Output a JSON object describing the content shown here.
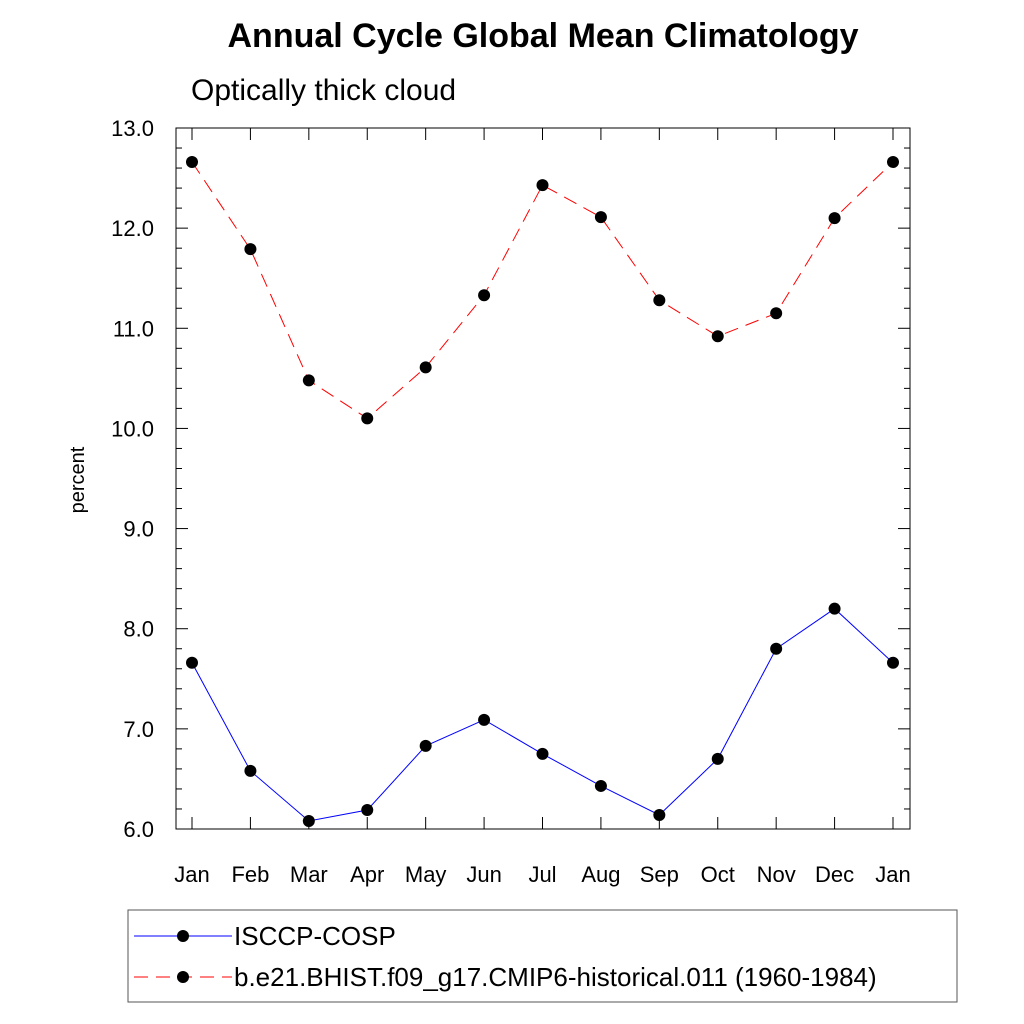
{
  "chart_data": {
    "type": "line",
    "title": "Annual Cycle Global Mean Climatology",
    "subtitle": "Optically thick cloud",
    "xlabel": "",
    "ylabel": "percent",
    "ylim": [
      6.0,
      13.0
    ],
    "yticks": [
      "6.0",
      "7.0",
      "8.0",
      "9.0",
      "10.0",
      "11.0",
      "12.0",
      "13.0"
    ],
    "categories": [
      "Jan",
      "Feb",
      "Mar",
      "Apr",
      "May",
      "Jun",
      "Jul",
      "Aug",
      "Sep",
      "Oct",
      "Nov",
      "Dec",
      "Jan"
    ],
    "series": [
      {
        "name": "ISCCP-COSP",
        "color": "#0000ff",
        "style": "solid",
        "values": [
          7.66,
          6.58,
          6.08,
          6.19,
          6.83,
          7.09,
          6.75,
          6.43,
          6.14,
          6.7,
          7.8,
          8.2,
          7.66
        ]
      },
      {
        "name": "b.e21.BHIST.f09_g17.CMIP6-historical.011 (1960-1984)",
        "color": "#ff0000",
        "style": "dashed",
        "values": [
          12.66,
          11.79,
          10.48,
          10.1,
          10.61,
          11.33,
          12.43,
          12.11,
          11.28,
          10.92,
          11.15,
          12.1,
          12.66
        ]
      }
    ],
    "legend_position": "bottom"
  }
}
